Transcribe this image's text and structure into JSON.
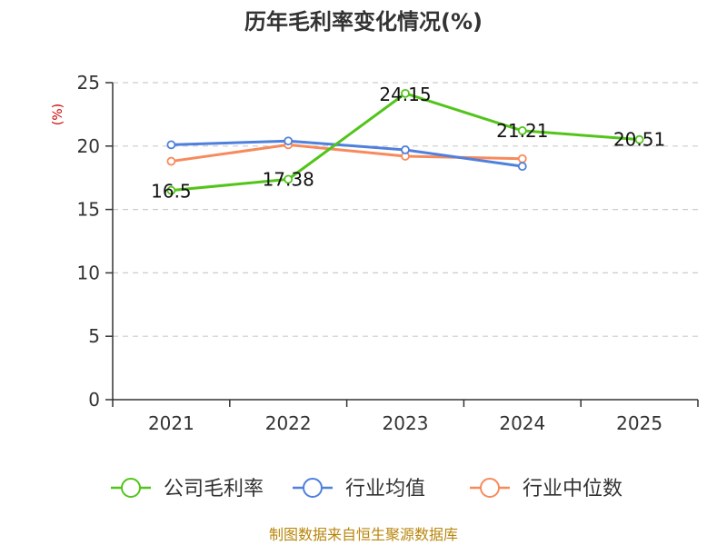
{
  "chart_data": {
    "type": "line",
    "title": "历年毛利率变化情况(%)",
    "ylabel": "(%)",
    "categories": [
      "2021",
      "2022",
      "2023",
      "2024",
      "2025"
    ],
    "ylim": [
      0,
      25
    ],
    "yticks": [
      "0",
      "5",
      "10",
      "15",
      "20",
      "25"
    ],
    "grid": true,
    "legend_position": "bottom",
    "series": [
      {
        "name": "公司毛利率",
        "color": "#52c41a",
        "values": [
          16.5,
          17.38,
          24.15,
          21.21,
          20.51
        ],
        "labels": [
          "16.5",
          "17.38",
          "24.15",
          "21.21",
          "20.51"
        ]
      },
      {
        "name": "行业均值",
        "color": "#4f80dc",
        "values": [
          20.1,
          20.4,
          19.7,
          18.4,
          null
        ]
      },
      {
        "name": "行业中位数",
        "color": "#f78a5c",
        "values": [
          18.8,
          20.1,
          19.2,
          19.0,
          null
        ]
      }
    ]
  },
  "source_note": "制图数据来自恒生聚源数据库",
  "colors": {
    "ylabel": "#cc0000",
    "source": "#b8860b",
    "grid": "#cccccc",
    "axis": "#333333"
  }
}
